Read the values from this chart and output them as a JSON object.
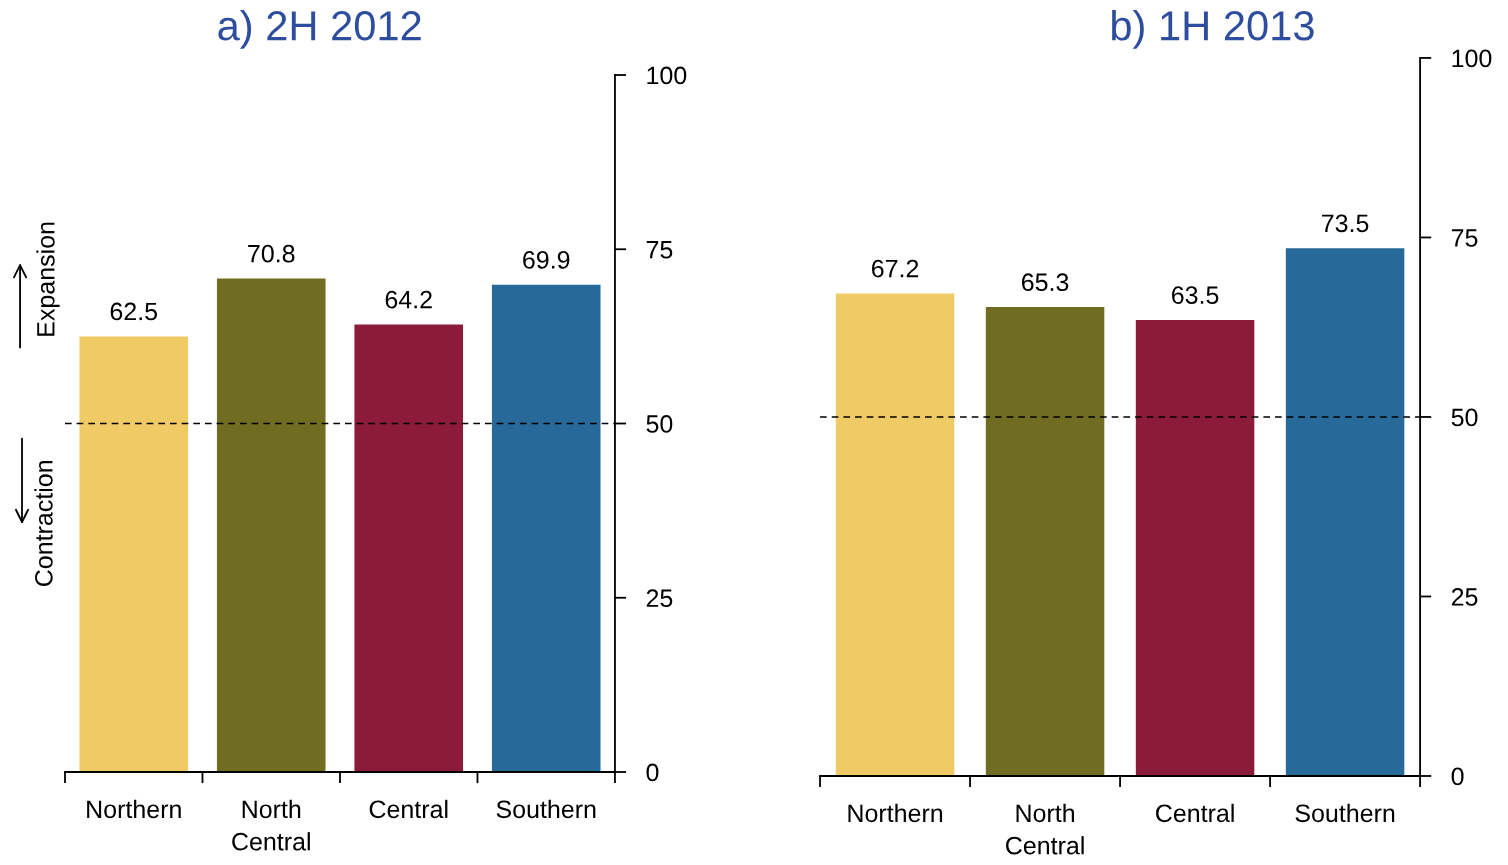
{
  "chart_data": [
    {
      "type": "bar",
      "title": "a) 2H 2012",
      "categories": [
        "Northern",
        "North\nCentral",
        "Central",
        "Southern"
      ],
      "values": [
        62.5,
        70.8,
        64.2,
        69.9
      ],
      "colors": [
        "#f0ca64",
        "#706d22",
        "#8c1b3a",
        "#276a99"
      ],
      "ylim": [
        0,
        100
      ],
      "yticks": [
        0,
        25,
        50,
        75,
        100
      ],
      "data_labels": true,
      "ref_lines": [
        {
          "axis": "y",
          "value": 50,
          "color": "#000000",
          "line_style": "dashed"
        }
      ],
      "annotations": [
        "Expansion",
        "Contraction"
      ],
      "legend": false
    },
    {
      "type": "bar",
      "title": "b) 1H 2013",
      "categories": [
        "Northern",
        "North\nCentral",
        "Central",
        "Southern"
      ],
      "values": [
        67.2,
        65.3,
        63.5,
        73.5
      ],
      "colors": [
        "#f0ca64",
        "#706d22",
        "#8c1b3a",
        "#276a99"
      ],
      "ylim": [
        0,
        100
      ],
      "yticks": [
        0,
        25,
        50,
        75,
        100
      ],
      "data_labels": true,
      "ref_lines": [
        {
          "axis": "y",
          "value": 50,
          "color": "#000000",
          "line_style": "dashed"
        }
      ],
      "legend": false
    }
  ]
}
